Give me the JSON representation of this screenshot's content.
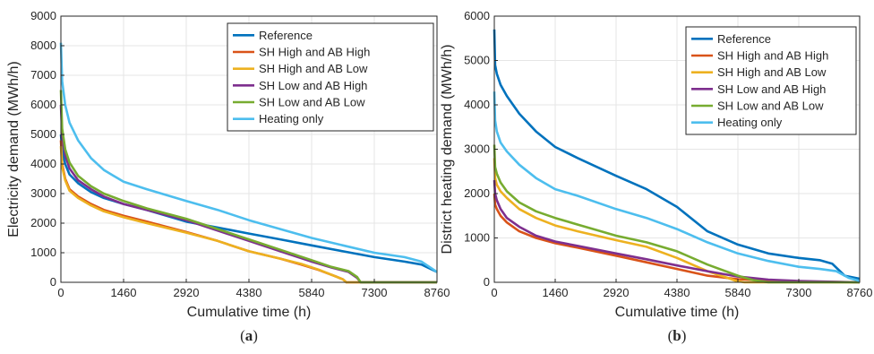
{
  "chart_data": [
    {
      "type": "line",
      "caption_prefix": "(",
      "caption_letter": "a",
      "caption_suffix": ")",
      "xlabel": "Cumulative time (h)",
      "ylabel": "Electricity demand (MWh/h)",
      "xlim": [
        0,
        8760
      ],
      "ylim": [
        0,
        9000
      ],
      "xticks": [
        0,
        1460,
        2920,
        4380,
        5840,
        7300,
        8760
      ],
      "yticks": [
        0,
        1000,
        2000,
        3000,
        4000,
        5000,
        6000,
        7000,
        8000,
        9000
      ],
      "grid": true,
      "legend_position": "top-right",
      "series": [
        {
          "name": "Reference",
          "color": "#0072BD",
          "x": [
            0,
            30,
            100,
            200,
            400,
            700,
            1000,
            1460,
            2000,
            2920,
            3650,
            4380,
            5110,
            5840,
            6570,
            7300,
            8000,
            8400,
            8760
          ],
          "y": [
            5000,
            4500,
            4000,
            3650,
            3350,
            3050,
            2850,
            2650,
            2450,
            2050,
            1850,
            1650,
            1450,
            1250,
            1050,
            850,
            700,
            600,
            350
          ]
        },
        {
          "name": "SH High and AB High",
          "color": "#D95319",
          "x": [
            0,
            30,
            100,
            200,
            400,
            700,
            1000,
            1460,
            2000,
            2920,
            3650,
            4380,
            5110,
            5600,
            6000,
            6400,
            6570,
            6650,
            8760
          ],
          "y": [
            4800,
            4000,
            3500,
            3150,
            2900,
            2650,
            2450,
            2250,
            2050,
            1700,
            1400,
            1050,
            800,
            600,
            420,
            200,
            100,
            0,
            0
          ]
        },
        {
          "name": "SH High and AB Low",
          "color": "#EDB120",
          "x": [
            0,
            30,
            100,
            200,
            400,
            700,
            1000,
            1460,
            2000,
            2920,
            3650,
            4380,
            5110,
            5600,
            6000,
            6400,
            6570,
            6650,
            8760
          ],
          "y": [
            4600,
            3900,
            3450,
            3100,
            2850,
            2600,
            2400,
            2200,
            2000,
            1680,
            1400,
            1050,
            800,
            620,
            430,
            200,
            100,
            0,
            0
          ]
        },
        {
          "name": "SH Low and AB High",
          "color": "#7E2F8E",
          "x": [
            0,
            30,
            100,
            200,
            400,
            700,
            1000,
            1460,
            2000,
            2920,
            3650,
            4380,
            5110,
            5840,
            6300,
            6700,
            6900,
            6980,
            8760
          ],
          "y": [
            6000,
            5000,
            4300,
            3850,
            3450,
            3150,
            2900,
            2650,
            2450,
            2100,
            1750,
            1400,
            1050,
            700,
            500,
            350,
            150,
            0,
            0
          ]
        },
        {
          "name": "SH Low and AB Low",
          "color": "#77AC30",
          "x": [
            0,
            30,
            100,
            200,
            400,
            700,
            1000,
            1460,
            2000,
            2920,
            3650,
            4380,
            5110,
            5840,
            6300,
            6700,
            6900,
            6980,
            8760
          ],
          "y": [
            6500,
            5200,
            4500,
            4050,
            3600,
            3250,
            3000,
            2750,
            2500,
            2150,
            1800,
            1450,
            1100,
            750,
            520,
            380,
            180,
            0,
            0
          ]
        },
        {
          "name": "Heating only",
          "color": "#4DBEEE",
          "x": [
            0,
            30,
            100,
            200,
            400,
            700,
            1000,
            1460,
            2000,
            2920,
            3650,
            4380,
            5110,
            5840,
            6570,
            7300,
            8000,
            8400,
            8760
          ],
          "y": [
            8100,
            6800,
            6000,
            5400,
            4800,
            4200,
            3800,
            3400,
            3150,
            2750,
            2450,
            2100,
            1800,
            1500,
            1250,
            1000,
            850,
            700,
            350
          ]
        }
      ]
    },
    {
      "type": "line",
      "caption_prefix": "(",
      "caption_letter": "b",
      "caption_suffix": ")",
      "xlabel": "Cumulative time (h)",
      "ylabel": "District heating demand (MWh/h)",
      "xlim": [
        0,
        8760
      ],
      "ylim": [
        0,
        6000
      ],
      "xticks": [
        0,
        1460,
        2920,
        4380,
        5840,
        7300,
        8760
      ],
      "yticks": [
        0,
        1000,
        2000,
        3000,
        4000,
        5000,
        6000
      ],
      "grid": true,
      "legend_position": "top-right",
      "series": [
        {
          "name": "Reference",
          "color": "#0072BD",
          "x": [
            0,
            20,
            60,
            150,
            300,
            600,
            1000,
            1460,
            2000,
            2920,
            3650,
            4380,
            5110,
            5840,
            6570,
            7300,
            7800,
            8100,
            8400,
            8760
          ],
          "y": [
            5700,
            4900,
            4700,
            4450,
            4200,
            3800,
            3400,
            3050,
            2800,
            2400,
            2100,
            1700,
            1150,
            850,
            650,
            550,
            500,
            420,
            150,
            80
          ]
        },
        {
          "name": "SH High and AB High",
          "color": "#D95319",
          "x": [
            0,
            20,
            60,
            150,
            300,
            600,
            1000,
            1460,
            2000,
            2920,
            3650,
            4380,
            5110,
            5840,
            6570,
            7300,
            8760
          ],
          "y": [
            2000,
            1750,
            1650,
            1500,
            1350,
            1150,
            1000,
            880,
            780,
            600,
            450,
            300,
            150,
            70,
            40,
            20,
            0
          ]
        },
        {
          "name": "SH High and AB Low",
          "color": "#EDB120",
          "x": [
            0,
            20,
            60,
            150,
            300,
            600,
            1000,
            1460,
            2000,
            2920,
            3650,
            4380,
            5110,
            5600,
            5800,
            6000,
            8760
          ],
          "y": [
            2800,
            2350,
            2200,
            2050,
            1900,
            1650,
            1450,
            1280,
            1150,
            950,
            800,
            550,
            250,
            100,
            30,
            0,
            0
          ]
        },
        {
          "name": "SH Low and AB High",
          "color": "#7E2F8E",
          "x": [
            0,
            20,
            60,
            150,
            300,
            600,
            1000,
            1460,
            2000,
            2920,
            3650,
            4380,
            5110,
            5840,
            6570,
            7300,
            8760
          ],
          "y": [
            2300,
            2000,
            1850,
            1650,
            1450,
            1250,
            1050,
            920,
            820,
            650,
            520,
            380,
            250,
            130,
            60,
            30,
            0
          ]
        },
        {
          "name": "SH Low and AB Low",
          "color": "#77AC30",
          "x": [
            0,
            20,
            60,
            150,
            300,
            600,
            1000,
            1460,
            2000,
            2920,
            3650,
            4380,
            5110,
            5840,
            6200,
            6570,
            8760
          ],
          "y": [
            3100,
            2600,
            2450,
            2250,
            2050,
            1800,
            1600,
            1450,
            1300,
            1050,
            900,
            700,
            400,
            150,
            50,
            0,
            0
          ]
        },
        {
          "name": "Heating only",
          "color": "#4DBEEE",
          "x": [
            0,
            20,
            60,
            150,
            300,
            600,
            1000,
            1460,
            2000,
            2920,
            3650,
            4380,
            5110,
            5840,
            6570,
            7300,
            7800,
            8200,
            8500,
            8760
          ],
          "y": [
            4300,
            3650,
            3400,
            3150,
            2950,
            2650,
            2350,
            2100,
            1950,
            1650,
            1450,
            1200,
            900,
            650,
            480,
            350,
            300,
            250,
            100,
            30
          ]
        }
      ]
    }
  ]
}
